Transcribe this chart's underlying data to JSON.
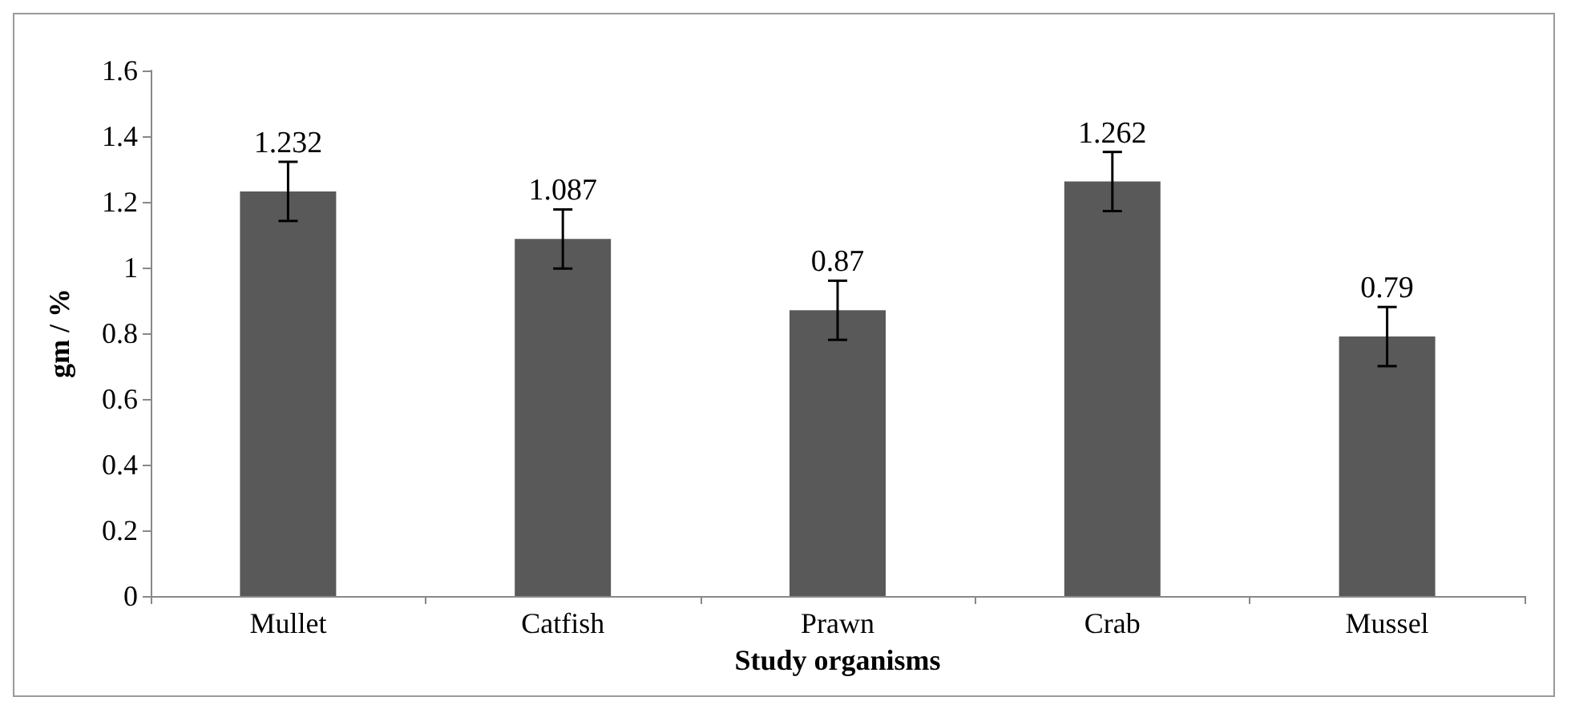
{
  "chart_data": {
    "type": "bar",
    "xlabel": "Study organisms",
    "ylabel": "gm / %",
    "categories": [
      "Mullet",
      "Catfish",
      "Prawn",
      "Crab",
      "Mussel"
    ],
    "values": [
      1.232,
      1.087,
      0.87,
      1.262,
      0.79
    ],
    "errors": [
      0.09,
      0.09,
      0.09,
      0.09,
      0.09
    ],
    "color": "#595959",
    "data_labels": true,
    "ylim": [
      0,
      1.6
    ],
    "yticks": [
      0,
      0.2,
      0.4,
      0.6,
      0.8,
      1,
      1.2,
      1.4,
      1.6
    ],
    "grid": false
  }
}
